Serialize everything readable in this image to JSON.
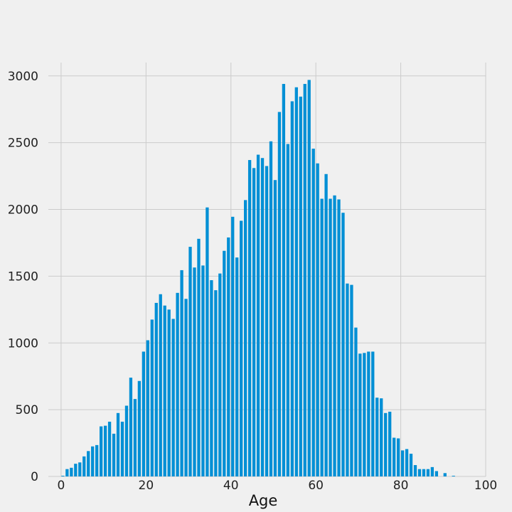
{
  "chart_data": {
    "type": "bar",
    "xlabel": "Age",
    "ylabel": "",
    "title": "",
    "xlim": [
      -3,
      100
    ],
    "ylim": [
      0,
      3100
    ],
    "xticks": [
      0,
      20,
      40,
      60,
      80,
      100
    ],
    "yticks": [
      0,
      500,
      1000,
      1500,
      2000,
      2500,
      3000
    ],
    "grid": true,
    "bar_color": "#008fd5",
    "background": "#f0f0f0",
    "x": [
      0,
      1,
      2,
      3,
      4,
      5,
      6,
      7,
      8,
      9,
      10,
      11,
      12,
      13,
      14,
      15,
      16,
      17,
      18,
      19,
      20,
      21,
      22,
      23,
      24,
      25,
      26,
      27,
      28,
      29,
      30,
      31,
      32,
      33,
      34,
      35,
      36,
      37,
      38,
      39,
      40,
      41,
      42,
      43,
      44,
      45,
      46,
      47,
      48,
      49,
      50,
      51,
      52,
      53,
      54,
      55,
      56,
      57,
      58,
      59,
      60,
      61,
      62,
      63,
      64,
      65,
      66,
      67,
      68,
      69,
      70,
      71,
      72,
      73,
      74,
      75,
      76,
      77,
      78,
      79,
      80,
      81,
      82,
      83,
      84,
      85,
      86,
      87,
      88,
      89,
      90,
      91,
      92
    ],
    "values": [
      5,
      55,
      65,
      95,
      105,
      150,
      190,
      225,
      235,
      375,
      380,
      410,
      320,
      475,
      410,
      530,
      740,
      580,
      715,
      935,
      1020,
      1175,
      1300,
      1365,
      1280,
      1250,
      1180,
      1375,
      1545,
      1330,
      1720,
      1565,
      1780,
      1580,
      2015,
      1470,
      1395,
      1520,
      1690,
      1790,
      1945,
      1640,
      1915,
      2070,
      2370,
      2310,
      2410,
      2385,
      2325,
      2510,
      2220,
      2730,
      2940,
      2490,
      2810,
      2915,
      2845,
      2940,
      2970,
      2455,
      2345,
      2080,
      2265,
      2080,
      2105,
      2075,
      1975,
      1445,
      1435,
      1115,
      920,
      925,
      935,
      935,
      590,
      585,
      475,
      485,
      290,
      285,
      195,
      205,
      170,
      85,
      55,
      55,
      55,
      70,
      40,
      0,
      25,
      0,
      5
    ]
  }
}
